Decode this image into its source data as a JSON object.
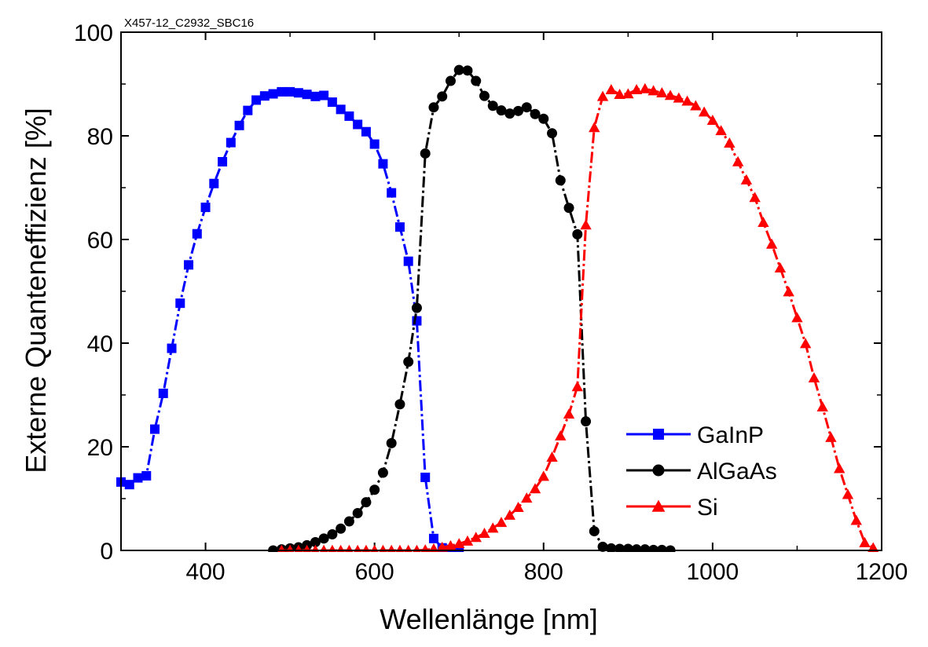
{
  "chart_data": {
    "type": "line",
    "title": "X457-12_C2932_SBC16",
    "xlabel": "Wellenlänge [nm]",
    "ylabel": "Externe Quanteneffizienz [%]",
    "xlim": [
      300,
      1200
    ],
    "ylim": [
      0,
      100
    ],
    "xticks": [
      400,
      600,
      800,
      1000,
      1200
    ],
    "yticks": [
      0,
      20,
      40,
      60,
      80,
      100
    ],
    "x_minor_step": 100,
    "y_minor_step": 10,
    "legend_position": "bottom-right",
    "grid": false,
    "series": [
      {
        "name": "GaInP",
        "color": "#0000ff",
        "marker": "square",
        "points": [
          [
            300,
            13.2
          ],
          [
            310,
            12.7
          ],
          [
            320,
            14.0
          ],
          [
            330,
            14.4
          ],
          [
            340,
            23.4
          ],
          [
            350,
            30.3
          ],
          [
            360,
            39.0
          ],
          [
            370,
            47.7
          ],
          [
            380,
            55.1
          ],
          [
            390,
            61.1
          ],
          [
            400,
            66.2
          ],
          [
            410,
            70.8
          ],
          [
            420,
            75.0
          ],
          [
            430,
            78.7
          ],
          [
            440,
            82.0
          ],
          [
            450,
            84.9
          ],
          [
            460,
            86.9
          ],
          [
            470,
            87.7
          ],
          [
            480,
            88.1
          ],
          [
            490,
            88.5
          ],
          [
            500,
            88.5
          ],
          [
            510,
            88.3
          ],
          [
            520,
            88.0
          ],
          [
            530,
            87.6
          ],
          [
            540,
            87.8
          ],
          [
            550,
            86.5
          ],
          [
            560,
            85.1
          ],
          [
            570,
            83.8
          ],
          [
            580,
            82.2
          ],
          [
            590,
            80.8
          ],
          [
            600,
            78.4
          ],
          [
            610,
            74.6
          ],
          [
            620,
            69.0
          ],
          [
            630,
            62.4
          ],
          [
            640,
            55.8
          ],
          [
            650,
            44.3
          ],
          [
            660,
            14.1
          ],
          [
            670,
            2.3
          ],
          [
            680,
            0.5
          ],
          [
            690,
            0.2
          ],
          [
            700,
            0.1
          ]
        ]
      },
      {
        "name": "AlGaAs",
        "color": "#000000",
        "marker": "circle",
        "points": [
          [
            480,
            0.0
          ],
          [
            490,
            0.2
          ],
          [
            500,
            0.4
          ],
          [
            510,
            0.6
          ],
          [
            520,
            1.0
          ],
          [
            530,
            1.6
          ],
          [
            540,
            2.3
          ],
          [
            550,
            3.1
          ],
          [
            560,
            4.2
          ],
          [
            570,
            5.6
          ],
          [
            580,
            7.2
          ],
          [
            590,
            9.3
          ],
          [
            600,
            11.7
          ],
          [
            610,
            15.0
          ],
          [
            620,
            20.7
          ],
          [
            630,
            28.2
          ],
          [
            640,
            36.4
          ],
          [
            650,
            46.8
          ],
          [
            660,
            76.6
          ],
          [
            670,
            85.5
          ],
          [
            680,
            87.6
          ],
          [
            690,
            90.6
          ],
          [
            700,
            92.7
          ],
          [
            710,
            92.6
          ],
          [
            720,
            90.6
          ],
          [
            730,
            87.7
          ],
          [
            740,
            85.8
          ],
          [
            750,
            84.9
          ],
          [
            760,
            84.3
          ],
          [
            770,
            84.8
          ],
          [
            780,
            85.5
          ],
          [
            790,
            84.2
          ],
          [
            800,
            83.3
          ],
          [
            810,
            80.5
          ],
          [
            820,
            71.4
          ],
          [
            830,
            66.1
          ],
          [
            840,
            61.0
          ],
          [
            850,
            24.9
          ],
          [
            860,
            3.7
          ],
          [
            870,
            0.7
          ],
          [
            880,
            0.4
          ],
          [
            890,
            0.3
          ],
          [
            900,
            0.3
          ],
          [
            910,
            0.2
          ],
          [
            920,
            0.2
          ],
          [
            930,
            0.1
          ],
          [
            940,
            0.1
          ],
          [
            950,
            0.0
          ]
        ]
      },
      {
        "name": "Si",
        "color": "#ff0000",
        "marker": "triangle",
        "points": [
          [
            490,
            0.0
          ],
          [
            500,
            0.0
          ],
          [
            510,
            0.0
          ],
          [
            520,
            0.0
          ],
          [
            530,
            0.0
          ],
          [
            540,
            0.0
          ],
          [
            550,
            0.0
          ],
          [
            560,
            0.0
          ],
          [
            570,
            0.0
          ],
          [
            580,
            0.0
          ],
          [
            590,
            0.0
          ],
          [
            600,
            0.0
          ],
          [
            610,
            0.0
          ],
          [
            620,
            0.0
          ],
          [
            630,
            0.0
          ],
          [
            640,
            0.0
          ],
          [
            650,
            0.0
          ],
          [
            660,
            0.1
          ],
          [
            670,
            0.3
          ],
          [
            680,
            0.6
          ],
          [
            690,
            0.9
          ],
          [
            700,
            1.3
          ],
          [
            710,
            1.8
          ],
          [
            720,
            2.5
          ],
          [
            730,
            3.3
          ],
          [
            740,
            4.3
          ],
          [
            750,
            5.4
          ],
          [
            760,
            6.8
          ],
          [
            770,
            8.3
          ],
          [
            780,
            10.1
          ],
          [
            790,
            11.9
          ],
          [
            800,
            14.3
          ],
          [
            810,
            18.0
          ],
          [
            820,
            22.1
          ],
          [
            830,
            26.3
          ],
          [
            840,
            31.6
          ],
          [
            850,
            62.8
          ],
          [
            860,
            81.6
          ],
          [
            870,
            87.6
          ],
          [
            880,
            88.9
          ],
          [
            890,
            88.0
          ],
          [
            900,
            88.1
          ],
          [
            910,
            88.9
          ],
          [
            920,
            89.1
          ],
          [
            930,
            88.7
          ],
          [
            940,
            88.3
          ],
          [
            950,
            87.8
          ],
          [
            960,
            87.3
          ],
          [
            970,
            86.7
          ],
          [
            980,
            85.8
          ],
          [
            990,
            84.6
          ],
          [
            1000,
            83.0
          ],
          [
            1010,
            81.0
          ],
          [
            1020,
            78.6
          ],
          [
            1030,
            75.0
          ],
          [
            1040,
            71.5
          ],
          [
            1050,
            68.1
          ],
          [
            1060,
            63.3
          ],
          [
            1070,
            59.1
          ],
          [
            1080,
            54.5
          ],
          [
            1090,
            49.9
          ],
          [
            1100,
            44.9
          ],
          [
            1110,
            39.9
          ],
          [
            1120,
            33.3
          ],
          [
            1130,
            27.7
          ],
          [
            1140,
            21.8
          ],
          [
            1150,
            15.8
          ],
          [
            1160,
            10.8
          ],
          [
            1170,
            5.8
          ],
          [
            1180,
            1.5
          ],
          [
            1190,
            0.5
          ]
        ]
      }
    ]
  }
}
